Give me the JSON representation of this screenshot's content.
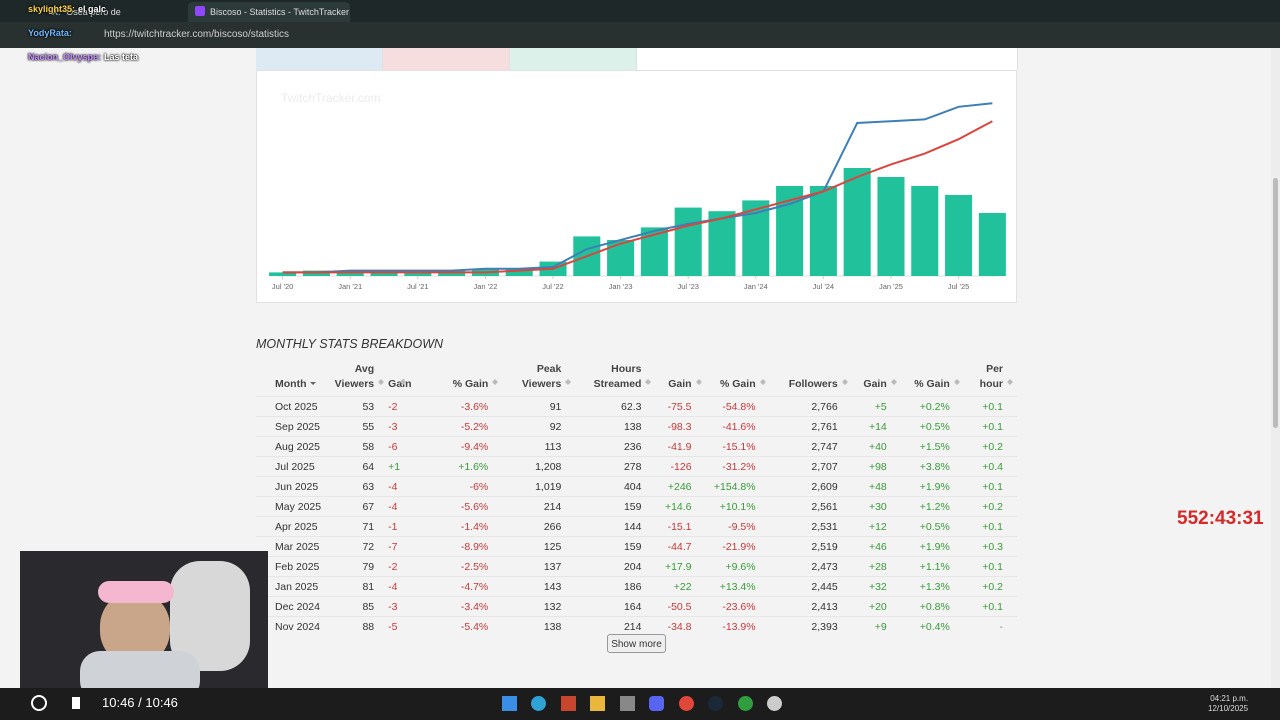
{
  "browser": {
    "tabs": [
      "X: \"Osea pero de",
      "Biscoso - Statistics - TwitchTracker"
    ],
    "url": "https://twitchtracker.com/biscoso/statistics"
  },
  "chat": [
    {
      "user": "skylight35:",
      "message": "el galc"
    },
    {
      "user": "YodyRata:",
      "message": ""
    },
    {
      "user": "Nacion_Olvyspe:",
      "message": "Las teta"
    }
  ],
  "chart_data": {
    "type": "bar",
    "watermark": "TwitchTracker.com",
    "x": [
      0,
      3,
      6,
      9,
      12,
      15,
      18,
      21,
      24,
      27,
      30,
      33,
      36,
      39,
      42,
      45,
      48,
      51,
      54,
      57,
      60,
      63
    ],
    "xlim": [
      -0.5,
      63.5
    ],
    "ylim": [
      0,
      100
    ],
    "xticks": [
      {
        "value": 0,
        "label": "Jul '20"
      },
      {
        "value": 6,
        "label": "Jan '21"
      },
      {
        "value": 12,
        "label": "Jul '21"
      },
      {
        "value": 18,
        "label": "Jan '22"
      },
      {
        "value": 24,
        "label": "Jul '22"
      },
      {
        "value": 30,
        "label": "Jan '23"
      },
      {
        "value": 36,
        "label": "Jul '23"
      },
      {
        "value": 42,
        "label": "Jan '24"
      },
      {
        "value": 48,
        "label": "Jul '24"
      },
      {
        "value": 54,
        "label": "Jan '25"
      },
      {
        "value": 60,
        "label": "Jul '25"
      }
    ],
    "series": [
      {
        "type": "bar",
        "color": "#21c29b",
        "values": [
          2,
          3,
          2,
          3,
          3,
          3,
          4,
          4,
          8,
          22,
          20,
          27,
          38,
          36,
          42,
          50,
          50,
          60,
          55,
          50,
          45,
          35
        ]
      },
      {
        "type": "line",
        "color": "#3f7fb5",
        "values": [
          2,
          2,
          3,
          3,
          3,
          3,
          4,
          4,
          5,
          15,
          20,
          25,
          29,
          32,
          35,
          40,
          47,
          85,
          86,
          87,
          94,
          96
        ]
      },
      {
        "type": "line",
        "color": "#d9453f",
        "values": [
          2,
          2,
          2,
          2,
          2,
          2,
          2,
          3,
          4,
          11,
          18,
          23,
          28,
          32,
          37,
          42,
          47,
          55,
          62,
          68,
          76,
          86
        ]
      }
    ]
  },
  "section_title": "MONTHLY STATS BREAKDOWN",
  "table": {
    "headers": [
      "Month",
      "Avg Viewers",
      "Gain",
      "% Gain",
      "Peak Viewers",
      "Hours Streamed",
      "Gain",
      "% Gain",
      "Followers",
      "Gain",
      "% Gain",
      "Per hour"
    ],
    "rows": [
      [
        "Oct 2025",
        "53",
        "-2",
        "-3.6%",
        "91",
        "62.3",
        "-75.5",
        "-54.8%",
        "2,766",
        "+5",
        "+0.2%",
        "+0.1"
      ],
      [
        "Sep 2025",
        "55",
        "-3",
        "-5.2%",
        "92",
        "138",
        "-98.3",
        "-41.6%",
        "2,761",
        "+14",
        "+0.5%",
        "+0.1"
      ],
      [
        "Aug 2025",
        "58",
        "-6",
        "-9.4%",
        "113",
        "236",
        "-41.9",
        "-15.1%",
        "2,747",
        "+40",
        "+1.5%",
        "+0.2"
      ],
      [
        "Jul 2025",
        "64",
        "+1",
        "+1.6%",
        "1,208",
        "278",
        "-126",
        "-31.2%",
        "2,707",
        "+98",
        "+3.8%",
        "+0.4"
      ],
      [
        "Jun 2025",
        "63",
        "-4",
        "-6%",
        "1,019",
        "404",
        "+246",
        "+154.8%",
        "2,609",
        "+48",
        "+1.9%",
        "+0.1"
      ],
      [
        "May 2025",
        "67",
        "-4",
        "-5.6%",
        "214",
        "159",
        "+14.6",
        "+10.1%",
        "2,561",
        "+30",
        "+1.2%",
        "+0.2"
      ],
      [
        "Apr 2025",
        "71",
        "-1",
        "-1.4%",
        "266",
        "144",
        "-15.1",
        "-9.5%",
        "2,531",
        "+12",
        "+0.5%",
        "+0.1"
      ],
      [
        "Mar 2025",
        "72",
        "-7",
        "-8.9%",
        "125",
        "159",
        "-44.7",
        "-21.9%",
        "2,519",
        "+46",
        "+1.9%",
        "+0.3"
      ],
      [
        "Feb 2025",
        "79",
        "-2",
        "-2.5%",
        "137",
        "204",
        "+17.9",
        "+9.6%",
        "2,473",
        "+28",
        "+1.1%",
        "+0.1"
      ],
      [
        "Jan 2025",
        "81",
        "-4",
        "-4.7%",
        "143",
        "186",
        "+22",
        "+13.4%",
        "2,445",
        "+32",
        "+1.3%",
        "+0.2"
      ],
      [
        "Dec 2024",
        "85",
        "-3",
        "-3.4%",
        "132",
        "164",
        "-50.5",
        "-23.6%",
        "2,413",
        "+20",
        "+0.8%",
        "+0.1"
      ],
      [
        "Nov 2024",
        "88",
        "-5",
        "-5.4%",
        "138",
        "214",
        "-34.8",
        "-13.9%",
        "2,393",
        "+9",
        "+0.4%",
        "-"
      ]
    ]
  },
  "show_more": "Show more",
  "timer": "552:43:31",
  "player": {
    "time": "10:46 / 10:46"
  },
  "taskbar": {
    "time": "04:21 p.m.",
    "date": "12/10/2025"
  }
}
